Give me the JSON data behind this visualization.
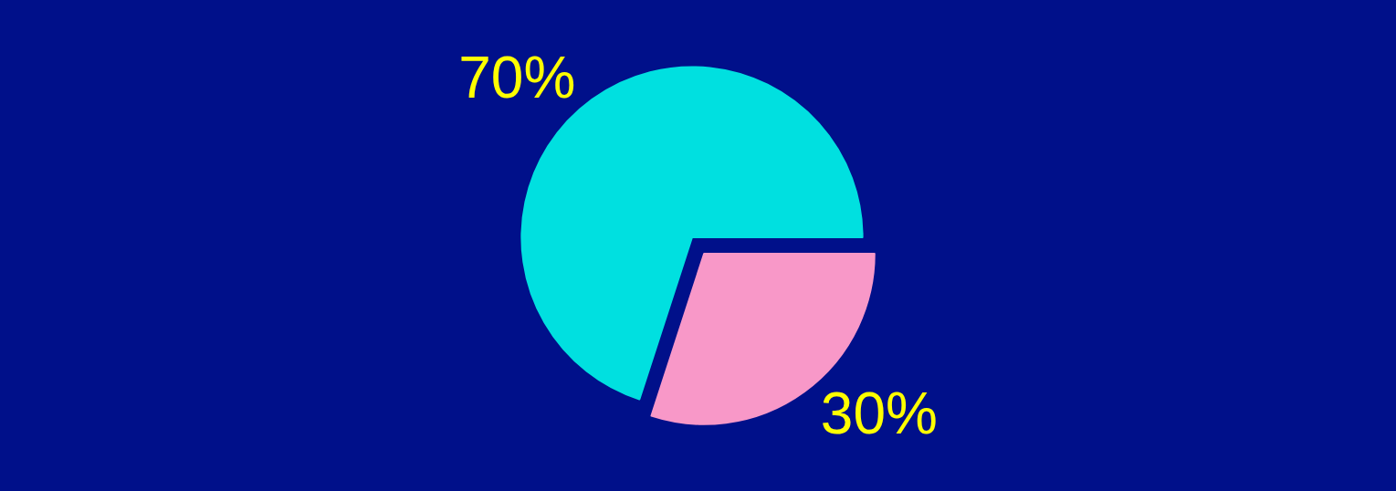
{
  "chart_data": {
    "type": "pie",
    "categories": [
      null,
      null
    ],
    "values": [
      70,
      30
    ],
    "colors": [
      "#00e0e0",
      "#f898c8"
    ],
    "value_labels": [
      "70%",
      "30%"
    ],
    "legend": false
  }
}
